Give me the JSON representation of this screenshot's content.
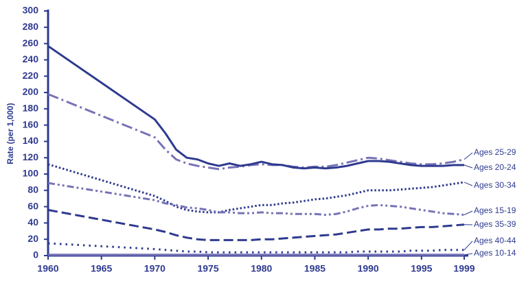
{
  "chart_data": {
    "type": "line",
    "y_label": "Rate (per 1,000)",
    "x": [
      1960,
      1970,
      1971,
      1972,
      1973,
      1974,
      1975,
      1976,
      1977,
      1978,
      1979,
      1980,
      1981,
      1982,
      1983,
      1984,
      1985,
      1986,
      1987,
      1988,
      1989,
      1990,
      1991,
      1992,
      1993,
      1994,
      1995,
      1996,
      1997,
      1998,
      1999
    ],
    "xlim": [
      1960,
      1999
    ],
    "xticks": [
      1960,
      1965,
      1970,
      1975,
      1980,
      1985,
      1990,
      1995,
      1999
    ],
    "ylim": [
      0,
      300
    ],
    "yticks": [
      0,
      20,
      40,
      60,
      80,
      100,
      120,
      140,
      160,
      180,
      200,
      220,
      240,
      260,
      280,
      300
    ],
    "series": [
      {
        "name": "Ages 25-29",
        "color": "#7672b6",
        "style": "dash-dot",
        "values": [
          198,
          145,
          130,
          118,
          113,
          110,
          108,
          106,
          108,
          109,
          111,
          112,
          111,
          111,
          109,
          108,
          109,
          109,
          111,
          114,
          117,
          120,
          119,
          117,
          115,
          113,
          112,
          112,
          113,
          115,
          118
        ]
      },
      {
        "name": "Ages 20-24",
        "color": "#2e3a8f",
        "style": "solid",
        "values": [
          257,
          167,
          150,
          130,
          120,
          118,
          113,
          110,
          113,
          110,
          112,
          115,
          112,
          111,
          108,
          107,
          108,
          107,
          108,
          110,
          113,
          116,
          116,
          115,
          113,
          111,
          110,
          110,
          110,
          111,
          111
        ]
      },
      {
        "name": "Ages 30-34",
        "color": "#2e3a8f",
        "style": "dotted",
        "values": [
          112,
          73,
          67,
          60,
          56,
          54,
          53,
          53,
          56,
          58,
          60,
          62,
          62,
          64,
          65,
          67,
          69,
          70,
          72,
          74,
          77,
          80,
          80,
          80,
          81,
          82,
          83,
          84,
          86,
          88,
          90
        ]
      },
      {
        "name": "Ages 15-19",
        "color": "#7672b6",
        "style": "dash-dot-dot",
        "values": [
          89,
          68,
          64,
          62,
          59,
          58,
          56,
          53,
          53,
          52,
          52,
          53,
          52,
          52,
          51,
          51,
          51,
          50,
          51,
          54,
          58,
          61,
          62,
          61,
          60,
          58,
          56,
          54,
          52,
          51,
          50
        ]
      },
      {
        "name": "Ages 35-39",
        "color": "#2e3a8f",
        "style": "dashed",
        "values": [
          56,
          32,
          29,
          25,
          22,
          20,
          19,
          19,
          19,
          19,
          19,
          20,
          20,
          21,
          22,
          23,
          24,
          25,
          26,
          28,
          30,
          32,
          32,
          33,
          33,
          34,
          35,
          35,
          36,
          37,
          38
        ]
      },
      {
        "name": "Ages 40-44",
        "color": "#2e3a8f",
        "style": "sparse-dotted",
        "values": [
          15,
          8,
          7,
          6,
          5,
          5,
          4,
          4,
          4,
          4,
          4,
          4,
          4,
          4,
          4,
          4,
          4,
          4,
          4,
          4,
          5,
          5,
          5,
          5,
          5,
          6,
          6,
          6,
          7,
          7,
          7
        ]
      },
      {
        "name": "Ages 10-14",
        "color": "#7672b6",
        "style": "solid",
        "values": [
          1,
          1,
          1,
          1,
          1,
          1,
          1,
          1,
          1,
          1,
          1,
          1,
          1,
          1,
          1,
          1,
          1,
          1,
          1,
          1,
          1,
          1,
          1,
          1,
          1,
          1,
          1,
          1,
          1,
          1,
          1
        ]
      }
    ]
  }
}
